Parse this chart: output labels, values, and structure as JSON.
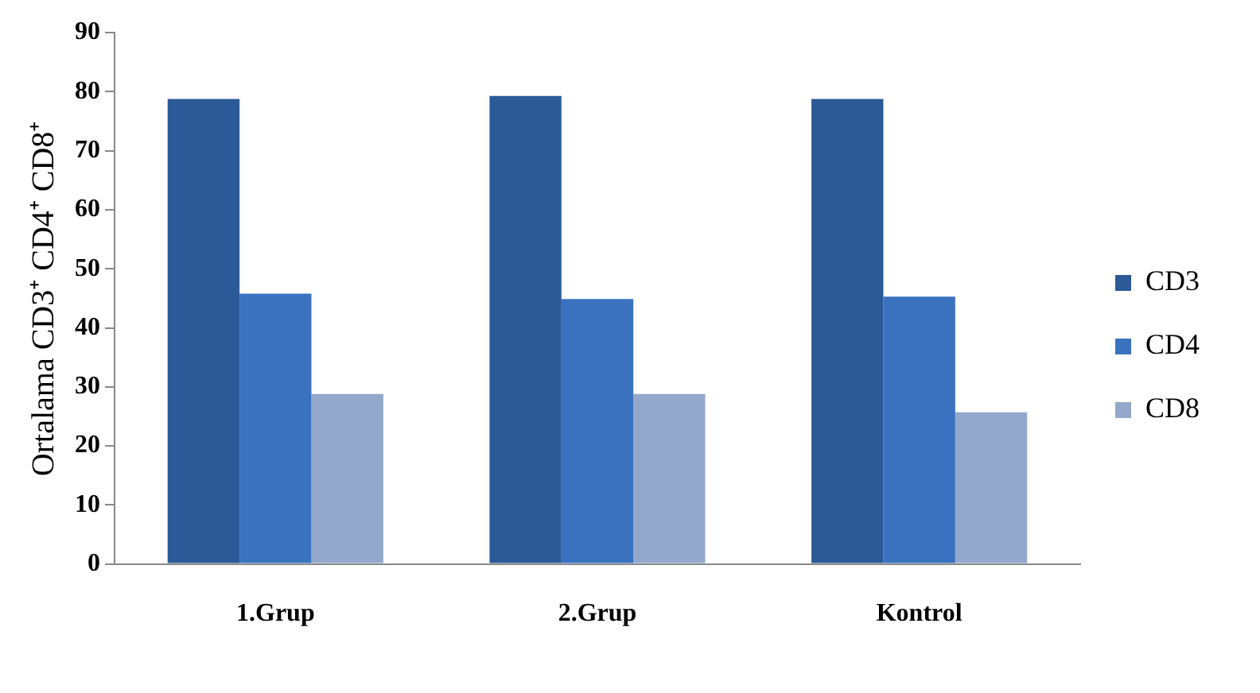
{
  "chart_data": {
    "type": "bar",
    "ylabel": "Ortalama CD3⁺ CD4⁺ CD8⁺",
    "categories": [
      "1.Grup",
      "2.Grup",
      "Kontrol"
    ],
    "series": [
      {
        "name": "CD3",
        "color": "#2c5a96",
        "values": [
          78.8,
          79.3,
          78.8
        ]
      },
      {
        "name": "CD4",
        "color": "#3b72c0",
        "values": [
          45.8,
          44.9,
          45.3
        ]
      },
      {
        "name": "CD8",
        "color": "#94a8cc",
        "values": [
          28.8,
          28.8,
          25.7
        ]
      }
    ],
    "ylim": [
      0,
      90
    ],
    "yticks": [
      0,
      10,
      20,
      30,
      40,
      50,
      60,
      70,
      80,
      90
    ],
    "grid": false,
    "legend": "right"
  }
}
